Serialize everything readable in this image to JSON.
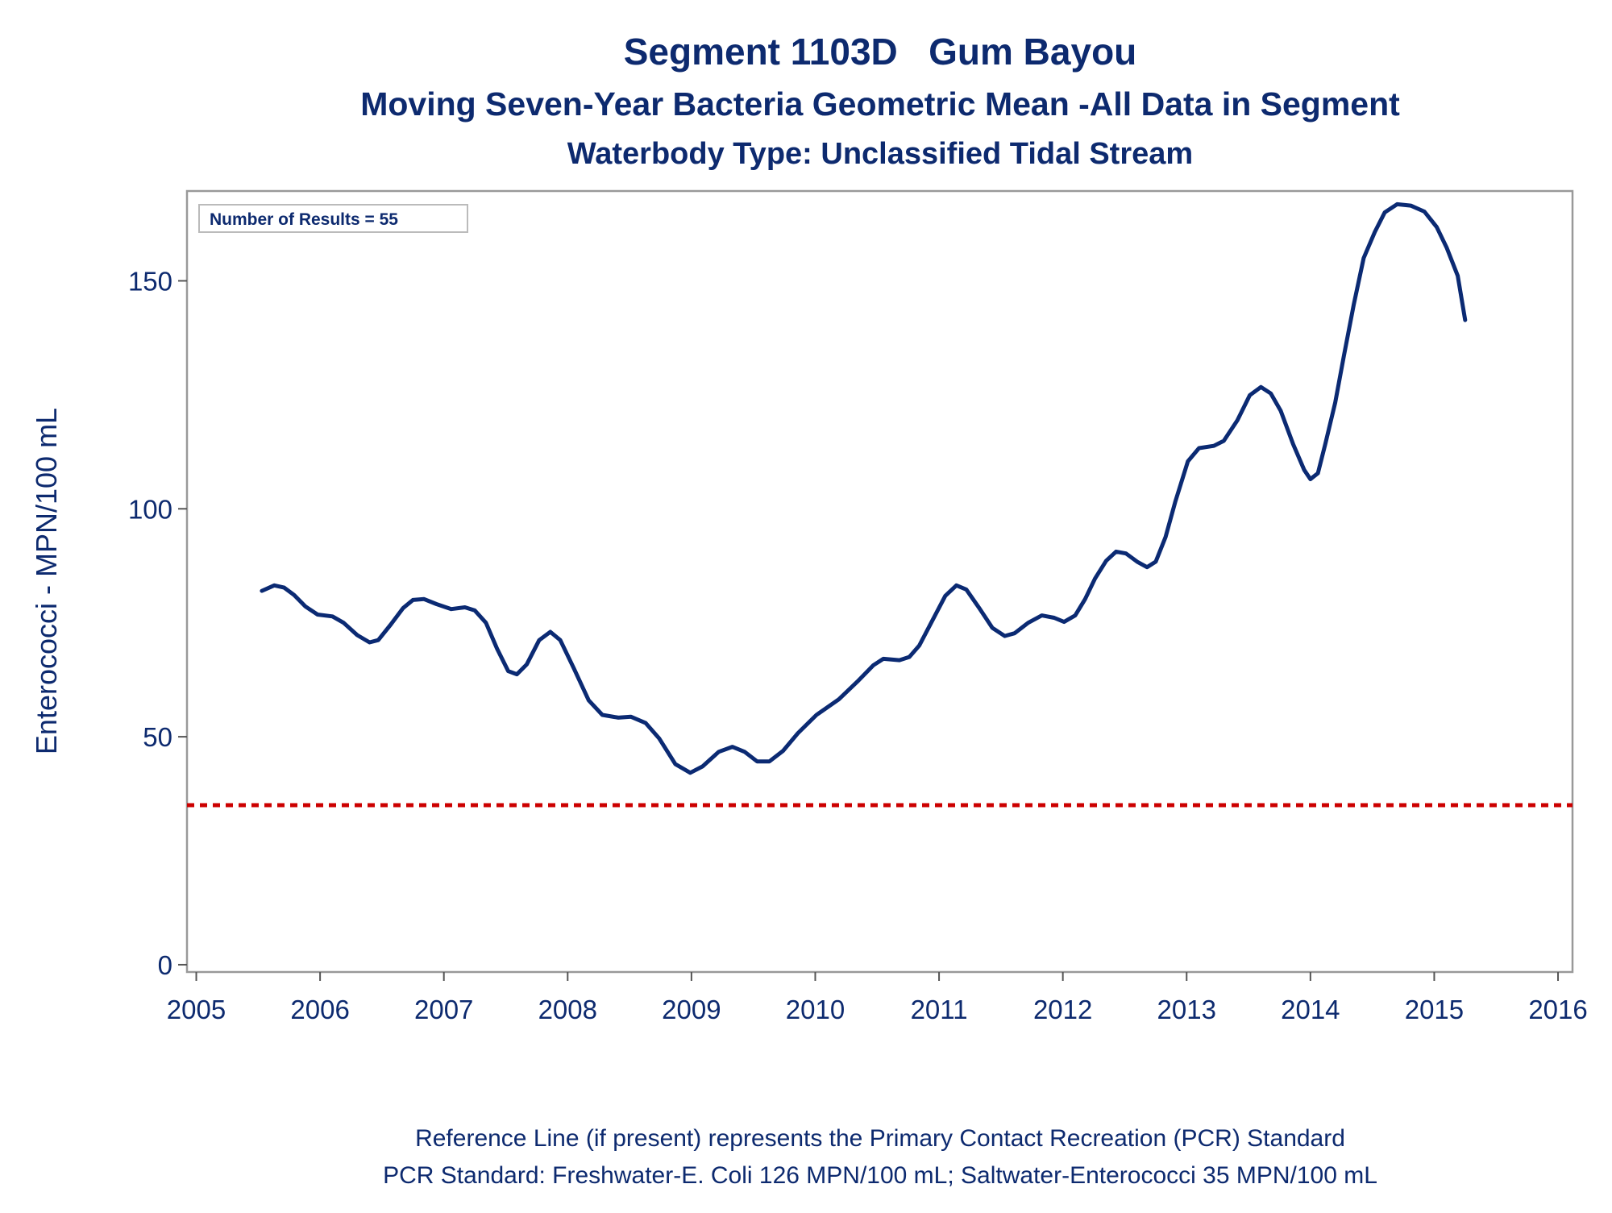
{
  "chart_data": {
    "type": "line",
    "title": "Segment 1103D   Gum Bayou",
    "subtitle": [
      "Moving Seven-Year Bacteria Geometric Mean -All Data in Segment",
      "Waterbody Type: Unclassified Tidal Stream"
    ],
    "annotation": "Number of Results = 55",
    "ylabel": "Enterococci - MPN/100 mL",
    "footnotes": [
      "Reference Line (if present) represents the Primary Contact Recreation (PCR) Standard",
      "PCR Standard: Freshwater-E. Coli 126 MPN/100 mL; Saltwater-Enterococci 35 MPN/100 mL"
    ],
    "x": [
      2005.53,
      2005.63,
      2005.71,
      2005.79,
      2005.88,
      2005.98,
      2006.1,
      2006.19,
      2006.3,
      2006.4,
      2006.47,
      2006.57,
      2006.67,
      2006.75,
      2006.84,
      2006.94,
      2007.06,
      2007.17,
      2007.25,
      2007.34,
      2007.43,
      2007.52,
      2007.59,
      2007.67,
      2007.77,
      2007.86,
      2007.94,
      2008.05,
      2008.17,
      2008.28,
      2008.41,
      2008.51,
      2008.63,
      2008.74,
      2008.87,
      2008.99,
      2009.09,
      2009.22,
      2009.33,
      2009.43,
      2009.53,
      2009.63,
      2009.74,
      2009.86,
      2010.01,
      2010.19,
      2010.34,
      2010.47,
      2010.55,
      2010.68,
      2010.76,
      2010.84,
      2010.95,
      2011.05,
      2011.14,
      2011.22,
      2011.33,
      2011.43,
      2011.53,
      2011.61,
      2011.72,
      2011.83,
      2011.93,
      2012.01,
      2012.1,
      2012.18,
      2012.26,
      2012.35,
      2012.43,
      2012.51,
      2012.6,
      2012.68,
      2012.75,
      2012.83,
      2012.91,
      2013.01,
      2013.1,
      2013.22,
      2013.3,
      2013.41,
      2013.51,
      2013.6,
      2013.68,
      2013.76,
      2013.86,
      2013.95,
      2014.0,
      2014.06,
      2014.12,
      2014.2,
      2014.27,
      2014.35,
      2014.43,
      2014.52,
      2014.6,
      2014.7,
      2014.81,
      2014.92,
      2015.02,
      2015.1,
      2015.19,
      2015.25
    ],
    "values": [
      82.0,
      83.2,
      82.7,
      81.1,
      78.6,
      76.8,
      76.4,
      75.0,
      72.3,
      70.7,
      71.2,
      74.6,
      78.2,
      80.0,
      80.2,
      79.1,
      78.0,
      78.4,
      77.7,
      75.0,
      69.3,
      64.4,
      63.7,
      65.9,
      71.2,
      73.0,
      71.2,
      65.0,
      58.0,
      54.8,
      54.2,
      54.4,
      53.0,
      49.6,
      44.0,
      42.1,
      43.5,
      46.7,
      47.8,
      46.7,
      44.6,
      44.6,
      46.9,
      50.8,
      54.8,
      58.2,
      62.1,
      65.7,
      67.1,
      66.8,
      67.5,
      70.0,
      75.7,
      80.9,
      83.2,
      82.3,
      78.0,
      73.9,
      72.1,
      72.7,
      75.0,
      76.6,
      76.1,
      75.2,
      76.6,
      80.2,
      84.7,
      88.6,
      90.6,
      90.2,
      88.4,
      87.2,
      88.4,
      93.8,
      101.7,
      110.4,
      113.3,
      113.8,
      114.9,
      119.4,
      124.9,
      126.7,
      125.3,
      121.5,
      114.2,
      108.5,
      106.5,
      107.8,
      114.2,
      123.3,
      133.5,
      144.8,
      155.0,
      160.7,
      165.0,
      166.8,
      166.5,
      165.2,
      161.8,
      157.3,
      151.1,
      141.4
    ],
    "color": "#0b2a73",
    "reference_line": {
      "value": 35,
      "color": "#cc0000"
    },
    "xlim": [
      2004.925,
      2016.117
    ],
    "ylim": [
      -1.6,
      169.7
    ],
    "xticks": [
      2005,
      2006,
      2007,
      2008,
      2009,
      2010,
      2011,
      2012,
      2013,
      2014,
      2015,
      2016
    ],
    "yticks": [
      0,
      50,
      100,
      150
    ]
  }
}
